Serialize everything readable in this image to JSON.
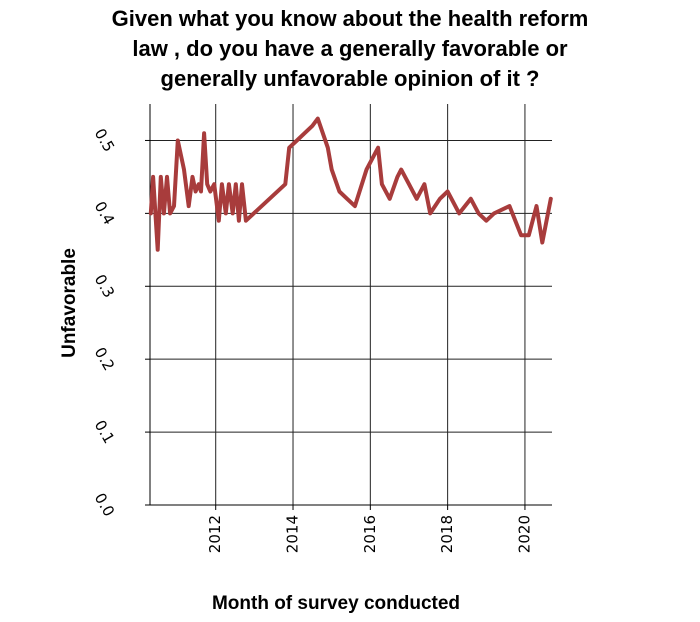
{
  "chart_data": {
    "type": "line",
    "title_lines": [
      "Given what you know about the health reform",
      "law , do you have a generally favorable or",
      "generally unfavorable opinion of it ?"
    ],
    "xlabel": "Month of survey conducted",
    "ylabel": "Unfavorable",
    "xlim": [
      2010.3,
      2020.7
    ],
    "ylim": [
      0.0,
      0.55
    ],
    "x_ticks": [
      2012,
      2014,
      2016,
      2018,
      2020
    ],
    "x_tick_labels": [
      "2012",
      "2014",
      "2016",
      "2018",
      "2020"
    ],
    "y_ticks": [
      0.0,
      0.1,
      0.2,
      0.3,
      0.4,
      0.5
    ],
    "y_tick_labels": [
      "0.0",
      "0.1",
      "0.2",
      "0.3",
      "0.4",
      "0.5"
    ],
    "grid": true,
    "series": [
      {
        "color": "#a83c3c",
        "x": [
          2010.32,
          2010.38,
          2010.5,
          2010.58,
          2010.66,
          2010.74,
          2010.82,
          2010.92,
          2011.02,
          2011.18,
          2011.3,
          2011.4,
          2011.48,
          2011.56,
          2011.62,
          2011.7,
          2011.78,
          2011.86,
          2011.96,
          2012.08,
          2012.16,
          2012.26,
          2012.34,
          2012.44,
          2012.52,
          2012.6,
          2012.68,
          2012.78,
          2013.8,
          2013.9,
          2014.1,
          2014.3,
          2014.5,
          2014.64,
          2014.9,
          2015.0,
          2015.2,
          2015.4,
          2015.6,
          2015.9,
          2016.2,
          2016.3,
          2016.5,
          2016.7,
          2016.8,
          2017.0,
          2017.2,
          2017.4,
          2017.55,
          2017.8,
          2018.0,
          2018.1,
          2018.3,
          2018.6,
          2018.8,
          2019.0,
          2019.2,
          2019.6,
          2019.9,
          2020.1,
          2020.3,
          2020.45,
          2020.67
        ],
        "y": [
          0.4,
          0.45,
          0.35,
          0.45,
          0.4,
          0.45,
          0.4,
          0.41,
          0.5,
          0.46,
          0.41,
          0.45,
          0.43,
          0.44,
          0.43,
          0.51,
          0.44,
          0.43,
          0.44,
          0.39,
          0.44,
          0.4,
          0.44,
          0.4,
          0.44,
          0.39,
          0.44,
          0.39,
          0.44,
          0.49,
          0.5,
          0.51,
          0.52,
          0.53,
          0.49,
          0.46,
          0.43,
          0.42,
          0.41,
          0.46,
          0.49,
          0.44,
          0.42,
          0.45,
          0.46,
          0.44,
          0.42,
          0.44,
          0.4,
          0.42,
          0.43,
          0.42,
          0.4,
          0.42,
          0.4,
          0.39,
          0.4,
          0.41,
          0.37,
          0.37,
          0.41,
          0.36,
          0.42
        ]
      }
    ]
  }
}
